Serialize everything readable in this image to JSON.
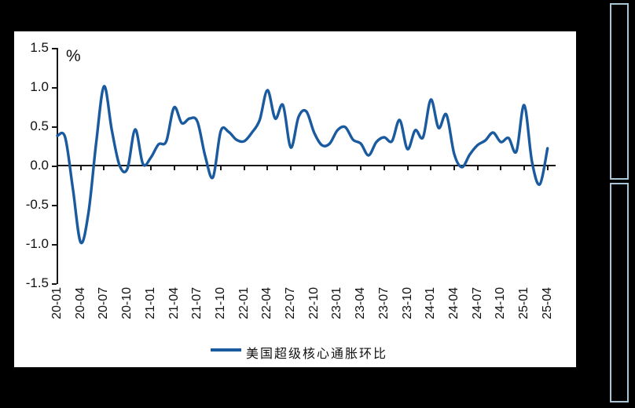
{
  "frame": {
    "background_color": "#000000",
    "panel_color": "#ffffff",
    "sidebar_border_color": "#a9c4d4"
  },
  "chart_data": {
    "type": "line",
    "title": "",
    "unit_label": "%",
    "series_name": "美国超级核心通胀环比",
    "line_color": "#1a5a9e",
    "legend_position": "bottom",
    "grid": false,
    "ylim": [
      -1.5,
      1.5
    ],
    "y_tick_labels": [
      "1.5",
      "1.0",
      "0.5",
      "0.0",
      "-0.5",
      "-1.0",
      "-1.5"
    ],
    "y_ticks": [
      1.5,
      1.0,
      0.5,
      0.0,
      -0.5,
      -1.0,
      -1.5
    ],
    "x_tick_labels": [
      "20-01",
      "20-04",
      "20-07",
      "20-10",
      "21-01",
      "21-04",
      "21-07",
      "21-10",
      "22-01",
      "22-04",
      "22-07",
      "22-10",
      "23-01",
      "23-04",
      "23-07",
      "23-10",
      "24-01",
      "24-04",
      "24-07",
      "24-10",
      "25-01",
      "25-04"
    ],
    "x": [
      "20-01",
      "20-02",
      "20-03",
      "20-04",
      "20-05",
      "20-06",
      "20-07",
      "20-08",
      "20-09",
      "20-10",
      "20-11",
      "20-12",
      "21-01",
      "21-02",
      "21-03",
      "21-04",
      "21-05",
      "21-06",
      "21-07",
      "21-08",
      "21-09",
      "21-10",
      "21-11",
      "21-12",
      "22-01",
      "22-02",
      "22-03",
      "22-04",
      "22-05",
      "22-06",
      "22-07",
      "22-08",
      "22-09",
      "22-10",
      "22-11",
      "22-12",
      "23-01",
      "23-02",
      "23-03",
      "23-04",
      "23-05",
      "23-06",
      "23-07",
      "23-08",
      "23-09",
      "23-10",
      "23-11",
      "23-12",
      "24-01",
      "24-02",
      "24-03",
      "24-04",
      "24-05",
      "24-06",
      "24-07",
      "24-08",
      "24-09",
      "24-10",
      "24-11",
      "24-12",
      "25-01",
      "25-02",
      "25-03",
      "25-04"
    ],
    "values": [
      0.38,
      0.36,
      -0.3,
      -0.98,
      -0.6,
      0.3,
      1.01,
      0.45,
      0.0,
      -0.04,
      0.46,
      0.02,
      0.1,
      0.27,
      0.31,
      0.74,
      0.54,
      0.6,
      0.56,
      0.12,
      -0.15,
      0.44,
      0.43,
      0.33,
      0.31,
      0.42,
      0.58,
      0.96,
      0.6,
      0.77,
      0.23,
      0.62,
      0.69,
      0.42,
      0.26,
      0.28,
      0.45,
      0.49,
      0.33,
      0.28,
      0.13,
      0.3,
      0.36,
      0.31,
      0.58,
      0.21,
      0.45,
      0.36,
      0.84,
      0.48,
      0.65,
      0.15,
      -0.02,
      0.14,
      0.26,
      0.32,
      0.42,
      0.3,
      0.35,
      0.18,
      0.77,
      0.05,
      -0.24,
      0.22
    ]
  }
}
